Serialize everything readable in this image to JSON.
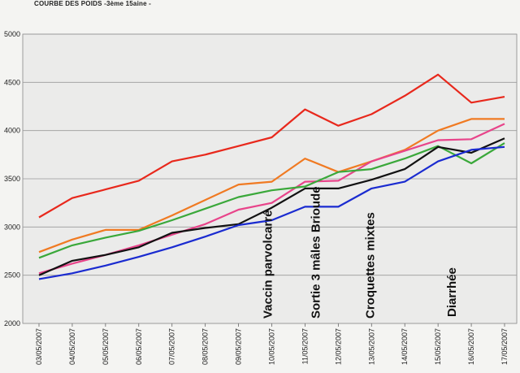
{
  "title": "COURBE DES POIDS -3ème 15aine -",
  "chart_data": {
    "type": "line",
    "title": "COURBE DES POIDS -3ème 15aine -",
    "xlabel": "",
    "ylabel": "",
    "ylim": [
      2000,
      5000
    ],
    "yticks": [
      "2000",
      "2500",
      "3000",
      "3500",
      "4000",
      "4500",
      "5000"
    ],
    "ytick_values": [
      2000,
      2500,
      3000,
      3500,
      4000,
      4500,
      5000
    ],
    "grid": true,
    "legend": "none",
    "categories": [
      "03/05/2007",
      "04/05/2007",
      "05/05/2007",
      "06/05/2007",
      "07/05/2007",
      "08/05/2007",
      "09/05/2007",
      "10/05/2007",
      "11/05/2007",
      "12/05/2007",
      "13/05/2007",
      "14/05/2007",
      "15/05/2007",
      "16/05/2007",
      "17/05/2007"
    ],
    "series": [
      {
        "color": "#e8281c",
        "values": [
          3100,
          3300,
          3390,
          3480,
          3680,
          3750,
          3840,
          3930,
          4220,
          4050,
          4170,
          4360,
          4580,
          4290,
          4350
        ]
      },
      {
        "color": "#f07a22",
        "values": [
          2740,
          2870,
          2970,
          2970,
          3120,
          3280,
          3440,
          3470,
          3710,
          3570,
          3680,
          3800,
          4000,
          4120,
          4120
        ]
      },
      {
        "color": "#e8448a",
        "values": [
          2520,
          2620,
          2710,
          2810,
          2920,
          3030,
          3180,
          3250,
          3470,
          3480,
          3680,
          3790,
          3900,
          3910,
          4070
        ]
      },
      {
        "color": "#3aa83a",
        "values": [
          2680,
          2810,
          2890,
          2960,
          3070,
          3190,
          3310,
          3380,
          3420,
          3570,
          3600,
          3710,
          3840,
          3660,
          3870
        ]
      },
      {
        "color": "#111111",
        "values": [
          2500,
          2650,
          2710,
          2790,
          2940,
          2990,
          3030,
          3200,
          3400,
          3400,
          3490,
          3600,
          3830,
          3770,
          3920
        ]
      },
      {
        "color": "#1a2bd0",
        "values": [
          2460,
          2520,
          2600,
          2690,
          2790,
          2900,
          3020,
          3070,
          3210,
          3210,
          3400,
          3470,
          3680,
          3800,
          3830
        ]
      }
    ],
    "annotations": [
      {
        "text": "Vaccin parvolcarré",
        "x": "10/05/2007"
      },
      {
        "text": "Sortie 3 mâles Brioude",
        "x": "11/05/2007"
      },
      {
        "text": "Croquettes mixtes",
        "x": "12/05/2007"
      },
      {
        "text": "Diarrhée",
        "x": "15/05/2007"
      }
    ]
  }
}
